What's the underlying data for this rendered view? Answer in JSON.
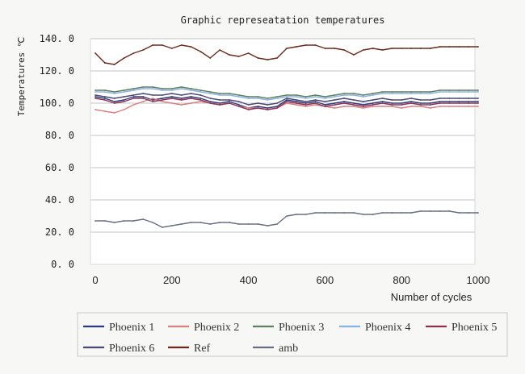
{
  "chart_data": {
    "type": "line",
    "title": "Graphic represeatation temperatures",
    "xlabel": "Number of cycles",
    "ylabel": "Temperatures ℃",
    "xlim": [
      0,
      1000
    ],
    "ylim": [
      0,
      140
    ],
    "xticks": [
      "0",
      "200",
      "400",
      "600",
      "800",
      "1000"
    ],
    "yticks": [
      "0. 0",
      "20. 0",
      "40. 0",
      "60. 0",
      "80. 0",
      "100. 0",
      "120. 0",
      "140. 0"
    ],
    "grid": "horizontal",
    "legend_position": "bottom",
    "x": [
      0,
      25,
      50,
      75,
      100,
      125,
      150,
      175,
      200,
      225,
      250,
      275,
      300,
      325,
      350,
      375,
      400,
      425,
      450,
      475,
      500,
      525,
      550,
      575,
      600,
      625,
      650,
      675,
      700,
      725,
      750,
      775,
      800,
      825,
      850,
      875,
      900,
      925,
      950,
      975,
      1000
    ],
    "series": [
      {
        "name": "Phoenix 1",
        "color": "#2c3a80",
        "values": [
          104,
          103,
          101,
          102,
          104,
          104,
          102,
          103,
          104,
          103,
          104,
          103,
          101,
          100,
          101,
          99,
          97,
          98,
          97,
          98,
          102,
          101,
          100,
          101,
          99,
          100,
          101,
          100,
          99,
          100,
          101,
          100,
          100,
          101,
          100,
          100,
          101,
          101,
          101,
          101,
          101
        ]
      },
      {
        "name": "Phoenix 2",
        "color": "#d98080",
        "values": [
          96,
          95,
          94,
          96,
          99,
          101,
          103,
          101,
          100,
          99,
          100,
          101,
          100,
          99,
          100,
          98,
          97,
          97,
          96,
          97,
          100,
          99,
          98,
          99,
          98,
          97,
          98,
          98,
          97,
          98,
          98,
          98,
          97,
          98,
          98,
          97,
          98,
          98,
          98,
          98,
          98
        ]
      },
      {
        "name": "Phoenix 3",
        "color": "#5f8060",
        "values": [
          108,
          108,
          107,
          108,
          109,
          110,
          110,
          109,
          109,
          110,
          109,
          108,
          107,
          106,
          106,
          105,
          104,
          104,
          103,
          104,
          105,
          105,
          104,
          105,
          104,
          105,
          106,
          106,
          105,
          106,
          107,
          107,
          107,
          107,
          107,
          107,
          108,
          108,
          108,
          108,
          108
        ]
      },
      {
        "name": "Phoenix 4",
        "color": "#8ab4e0",
        "values": [
          107,
          107,
          106,
          107,
          108,
          109,
          109,
          108,
          108,
          109,
          108,
          107,
          106,
          105,
          105,
          104,
          103,
          103,
          102,
          103,
          104,
          104,
          103,
          104,
          103,
          104,
          105,
          105,
          104,
          105,
          106,
          106,
          106,
          106,
          106,
          106,
          107,
          107,
          107,
          107,
          107
        ]
      },
      {
        "name": "Phoenix 5",
        "color": "#903050",
        "values": [
          103,
          102,
          100,
          101,
          103,
          103,
          101,
          102,
          103,
          102,
          103,
          102,
          100,
          99,
          100,
          98,
          96,
          97,
          96,
          97,
          101,
          100,
          99,
          100,
          98,
          99,
          100,
          99,
          98,
          99,
          100,
          99,
          99,
          100,
          99,
          99,
          100,
          100,
          100,
          100,
          100
        ]
      },
      {
        "name": "Phoenix 6",
        "color": "#4a4a78",
        "values": [
          105,
          104,
          103,
          104,
          105,
          106,
          105,
          105,
          106,
          105,
          106,
          105,
          103,
          102,
          102,
          101,
          99,
          100,
          99,
          100,
          103,
          102,
          101,
          102,
          101,
          102,
          103,
          102,
          101,
          102,
          103,
          102,
          102,
          103,
          102,
          102,
          103,
          103,
          103,
          103,
          103
        ]
      },
      {
        "name": "Ref",
        "color": "#6b2a1a",
        "values": [
          131,
          125,
          124,
          128,
          131,
          133,
          136,
          136,
          134,
          136,
          135,
          132,
          128,
          133,
          130,
          129,
          131,
          128,
          127,
          128,
          134,
          135,
          136,
          136,
          134,
          134,
          133,
          130,
          133,
          134,
          133,
          134,
          134,
          134,
          134,
          134,
          135,
          135,
          135,
          135,
          135
        ]
      },
      {
        "name": "amb",
        "color": "#6a6e84",
        "values": [
          27,
          27,
          26,
          27,
          27,
          28,
          26,
          23,
          24,
          25,
          26,
          26,
          25,
          26,
          26,
          25,
          25,
          25,
          24,
          25,
          30,
          31,
          31,
          32,
          32,
          32,
          32,
          32,
          31,
          31,
          32,
          32,
          32,
          32,
          33,
          33,
          33,
          33,
          32,
          32,
          32
        ]
      }
    ]
  }
}
